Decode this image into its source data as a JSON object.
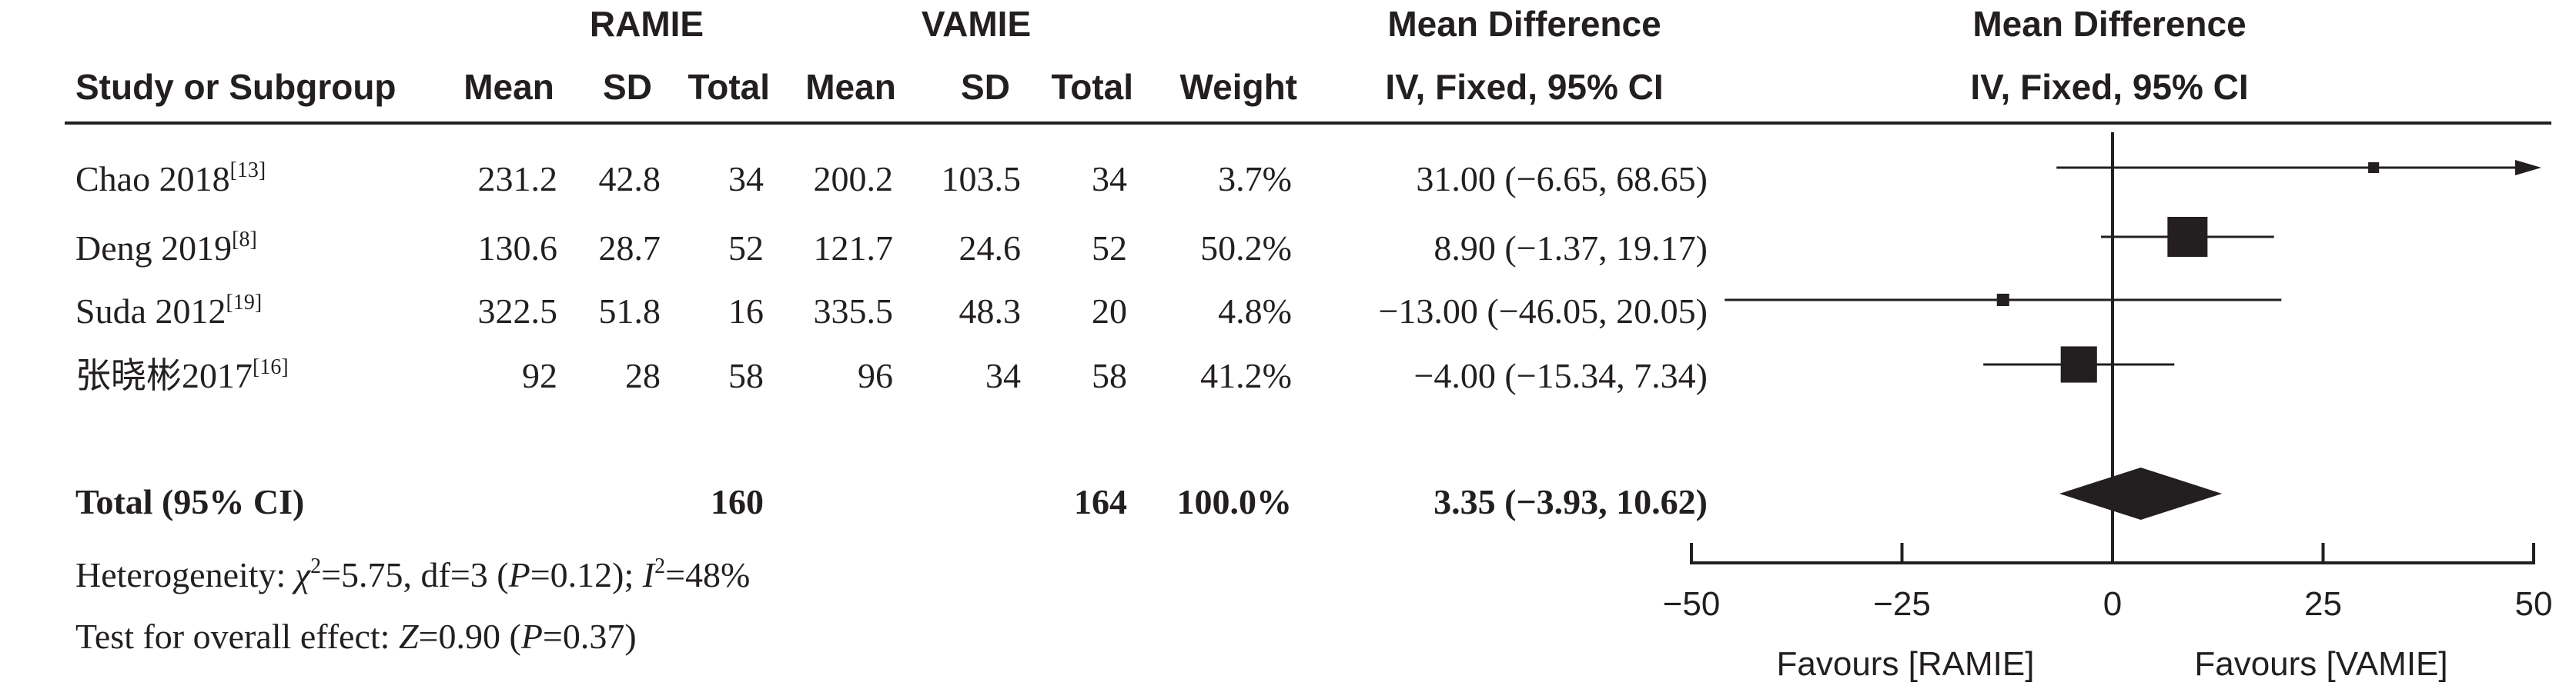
{
  "headers": {
    "group_left": "RAMIE",
    "group_right": "VAMIE",
    "effect_col_title": "Mean Difference",
    "effect_col_method": "IV, Fixed, 95% CI",
    "plot_col_title": "Mean Difference",
    "plot_col_method": "IV, Fixed, 95% CI",
    "study": "Study or Subgroup",
    "mean_l": "Mean",
    "sd_l": "SD",
    "total_l": "Total",
    "mean_r": "Mean",
    "sd_r": "SD",
    "total_r": "Total",
    "weight": "Weight"
  },
  "studies": [
    {
      "name": "Chao 2018",
      "ref": "[13]",
      "mean_l": "231.2",
      "sd_l": "42.8",
      "total_l": "34",
      "mean_r": "200.2",
      "sd_r": "103.5",
      "total_r": "34",
      "weight": "3.7%",
      "ci_text": "31.00 (−6.65, 68.65)"
    },
    {
      "name": "Deng 2019",
      "ref": "[8]",
      "mean_l": "130.6",
      "sd_l": "28.7",
      "total_l": "52",
      "mean_r": "121.7",
      "sd_r": "24.6",
      "total_r": "52",
      "weight": "50.2%",
      "ci_text": "8.90 (−1.37, 19.17)"
    },
    {
      "name": "Suda 2012",
      "ref": "[19]",
      "mean_l": "322.5",
      "sd_l": "51.8",
      "total_l": "16",
      "mean_r": "335.5",
      "sd_r": "48.3",
      "total_r": "20",
      "weight": "4.8%",
      "ci_text": "−13.00 (−46.05, 20.05)"
    },
    {
      "name": "张晓彬2017",
      "ref": "[16]",
      "mean_l": "92",
      "sd_l": "28",
      "total_l": "58",
      "mean_r": "96",
      "sd_r": "34",
      "total_r": "58",
      "weight": "41.2%",
      "ci_text": "−4.00 (−15.34, 7.34)"
    }
  ],
  "total": {
    "label": "Total (95% CI)",
    "total_l": "160",
    "total_r": "164",
    "weight": "100.0%",
    "ci_text": "3.35 (−3.93, 10.62)"
  },
  "footer": {
    "het_prefix": "Heterogeneity: ",
    "het_chi": "χ",
    "het_chi_sup": "2",
    "het_mid": "=5.75, df=3 (",
    "het_p": "P",
    "het_p_val": "=0.12); ",
    "het_i": "I",
    "het_i_sup": "2",
    "het_i_val": "=48%",
    "effect_prefix": "Test for overall effect: ",
    "effect_z": "Z",
    "effect_mid": "=0.90 (",
    "effect_p": "P",
    "effect_p_val": "=0.37)"
  },
  "chart_data": {
    "type": "forest",
    "title": "",
    "xlabel": "",
    "ylabel": "",
    "xlim": [
      -50,
      50
    ],
    "xticks": [
      -50,
      -25,
      0,
      25,
      50
    ],
    "xtick_labels": [
      "−50",
      "−25",
      "0",
      "25",
      "50"
    ],
    "favours_left": "Favours [RAMIE]",
    "favours_right": "Favours [VAMIE]",
    "studies": [
      {
        "name": "Chao 2018",
        "md": 31.0,
        "lower": -6.65,
        "upper": 68.65,
        "weight": 3.7
      },
      {
        "name": "Deng 2019",
        "md": 8.9,
        "lower": -1.37,
        "upper": 19.17,
        "weight": 50.2
      },
      {
        "name": "Suda 2012",
        "md": -13.0,
        "lower": -46.05,
        "upper": 20.05,
        "weight": 4.8
      },
      {
        "name": "张晓彬2017",
        "md": -4.0,
        "lower": -15.34,
        "upper": 7.34,
        "weight": 41.2
      }
    ],
    "pooled": {
      "md": 3.35,
      "lower": -3.93,
      "upper": 10.62
    },
    "colors": {
      "ink": "#231f20"
    }
  }
}
